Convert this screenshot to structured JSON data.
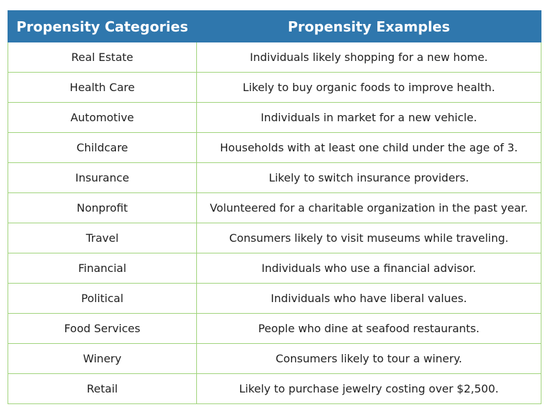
{
  "table": {
    "headers": [
      "Propensity Categories",
      "Propensity Examples"
    ],
    "rows": [
      [
        "Real Estate",
        "Individuals likely shopping for a new home."
      ],
      [
        "Health Care",
        "Likely to buy organic foods to improve health."
      ],
      [
        "Automotive",
        "Individuals in market for a new vehicle."
      ],
      [
        "Childcare",
        "Households with at least one child under the age of 3."
      ],
      [
        "Insurance",
        "Likely to switch insurance providers."
      ],
      [
        "Nonprofit",
        "Volunteered for a charitable organization in the past year."
      ],
      [
        "Travel",
        "Consumers likely to visit museums while traveling."
      ],
      [
        "Financial",
        "Individuals who use a financial advisor."
      ],
      [
        "Political",
        "Individuals who have liberal values."
      ],
      [
        "Food Services",
        "People who dine at seafood restaurants."
      ],
      [
        "Winery",
        "Consumers likely to tour a winery."
      ],
      [
        "Retail",
        "Likely to purchase jewelry costing over $2,500."
      ]
    ]
  },
  "colors": {
    "header_bg": "#2f77ad",
    "header_text": "#ffffff",
    "grid_line": "#9fd37a"
  }
}
